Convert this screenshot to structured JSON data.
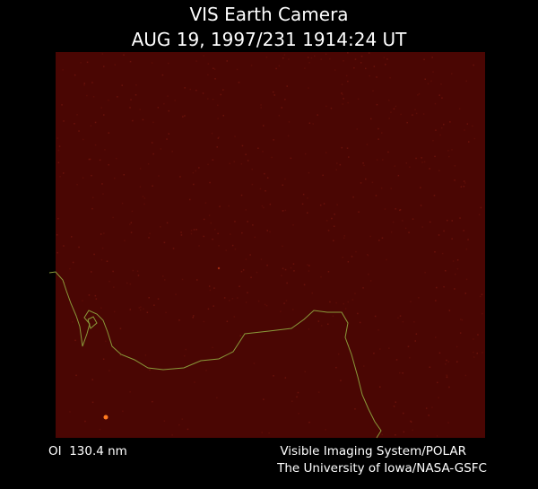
{
  "header": {
    "title": "VIS Earth Camera",
    "subtitle": "AUG 19, 1997/231 1914:24 UT"
  },
  "footer": {
    "left": "OI  130.4 nm",
    "right_line1": "Visible Imaging System/POLAR",
    "right_line2": "The University of Iowa/NASA-GSFC"
  }
}
